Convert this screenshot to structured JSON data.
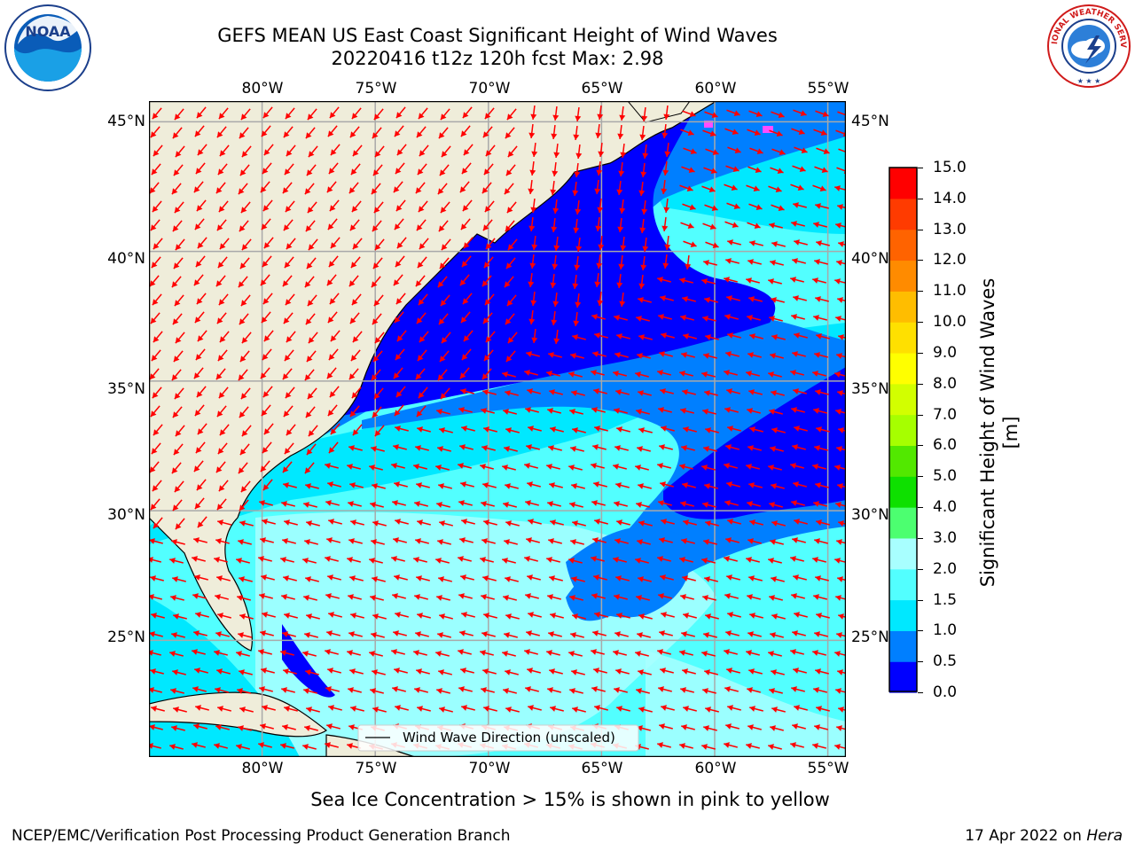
{
  "title": {
    "line1": "GEFS MEAN US East Coast Significant Height of Wind Waves",
    "line2": "20220416 t12z 120h fcst   Max: 2.98"
  },
  "map": {
    "lon_labels": [
      "80°W",
      "75°W",
      "70°W",
      "65°W",
      "60°W",
      "55°W"
    ],
    "lat_labels": [
      "45°N",
      "40°N",
      "35°N",
      "30°N",
      "25°N"
    ],
    "lon_values": [
      -80,
      -75,
      -70,
      -65,
      -60,
      -55
    ],
    "lat_values": [
      45,
      40,
      35,
      30,
      25
    ],
    "lon_range": [
      -85,
      -54.2
    ],
    "lat_range": [
      20.5,
      45.8
    ],
    "legend_label": "Wind Wave Direction (unscaled)",
    "arrow_color": "#ff0000",
    "land_color": "#efedda",
    "grid": true
  },
  "colorbar": {
    "label": "Significant Height of Wind Waves [m]",
    "ticks": [
      "15.0",
      "14.0",
      "13.0",
      "12.0",
      "11.0",
      "10.0",
      "9.0",
      "8.0",
      "7.0",
      "6.0",
      "5.0",
      "4.0",
      "3.0",
      "2.0",
      "1.5",
      "1.0",
      "0.5",
      "0.0"
    ],
    "colors": [
      "#0000ff",
      "#007fff",
      "#00e8ff",
      "#52ffff",
      "#a8ffff",
      "#4cff70",
      "#0ee000",
      "#52e800",
      "#a6ff00",
      "#d2ff00",
      "#ffff00",
      "#ffe000",
      "#ffbd00",
      "#ff8b00",
      "#ff6300",
      "#ff3b00",
      "#ff0000"
    ]
  },
  "sea_ice_note": "Sea Ice Concentration > 15% is shown in pink to yellow",
  "footer": {
    "left": "NCEP/EMC/Verification Post Processing Product Generation Branch",
    "right_date": "17 Apr 2022 on",
    "right_machine": "Hera"
  },
  "logos": {
    "noaa_text": "NOAA",
    "nws_text": "NATIONAL WEATHER SERVICE"
  }
}
